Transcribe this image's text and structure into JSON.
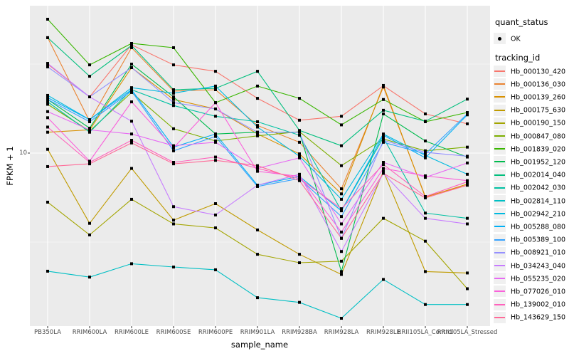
{
  "axes": {
    "x_title": "sample_name",
    "y_title": "FPKM + 1",
    "y_tick_label": "10"
  },
  "legend": {
    "quant_status_title": "quant_status",
    "quant_status_items": [
      {
        "label": "OK",
        "marker": "black-point"
      }
    ],
    "tracking_title": "tracking_id"
  },
  "chart_data": {
    "type": "line",
    "title": "",
    "xlabel": "sample_name",
    "ylabel": "FPKM + 1",
    "x_type": "categorical",
    "yscale": "log10",
    "y_breaks": [
      10
    ],
    "y_minor_breaks": [
      3.162,
      31.62
    ],
    "ylim": [
      1.1,
      68
    ],
    "grid": "on",
    "panel_background": "#EBEBEB",
    "gridline_color": "#FFFFFF",
    "marker": {
      "shape": "square",
      "color": "#000000",
      "size": 4
    },
    "legend_position": "right",
    "categories": [
      "PB350LA",
      "RRIM600LA",
      "RRIM600LE",
      "RRIM600SE",
      "RRIM600PE",
      "RRIM901LA",
      "RRIM928BA",
      "RRIM928LA",
      "RRIM928LE",
      "RRII105LA_Control",
      "RRII105LA_Stressed"
    ],
    "series": [
      {
        "name": "Hb_000130_420",
        "color": "#F8766D",
        "values": [
          31.6,
          20.7,
          40.6,
          31.3,
          28.8,
          20.3,
          15.3,
          16.1,
          23.9,
          16.6,
          14.6
        ]
      },
      {
        "name": "Hb_000136_030",
        "color": "#EA8331",
        "values": [
          44.5,
          15.1,
          39.1,
          22.3,
          22.7,
          14.3,
          11.5,
          6.3,
          23.5,
          5.7,
          6.6
        ]
      },
      {
        "name": "Hb_000139_260",
        "color": "#D89000",
        "values": [
          13.1,
          13.5,
          30.2,
          20.0,
          17.7,
          12.8,
          9.9,
          5.9,
          24.0,
          5.65,
          6.7
        ]
      },
      {
        "name": "Hb_000175_630",
        "color": "#C09B00",
        "values": [
          10.5,
          4.03,
          8.2,
          4.2,
          5.2,
          3.7,
          2.7,
          2.08,
          7.9,
          2.16,
          2.12
        ]
      },
      {
        "name": "Hb_000190_150",
        "color": "#A3A500",
        "values": [
          5.3,
          3.47,
          5.5,
          4.0,
          3.8,
          2.7,
          2.42,
          2.47,
          4.3,
          3.2,
          1.73
        ]
      },
      {
        "name": "Hb_000847_080",
        "color": "#7CAE00",
        "values": [
          18.8,
          13.3,
          21.9,
          13.7,
          11.7,
          12.5,
          13.2,
          8.5,
          12.0,
          10.3,
          10.8
        ]
      },
      {
        "name": "Hb_001839_020",
        "color": "#39B600",
        "values": [
          56.5,
          31.3,
          41.3,
          39.1,
          19.2,
          23.8,
          20.3,
          14.4,
          20.0,
          15.0,
          16.9
        ]
      },
      {
        "name": "Hb_001952_120",
        "color": "#00BB4E",
        "values": [
          20.0,
          13.8,
          31.6,
          20.7,
          12.8,
          13.1,
          13.1,
          2.16,
          16.6,
          11.7,
          9.5
        ]
      },
      {
        "name": "Hb_002014_040",
        "color": "#00BF7D",
        "values": [
          44.5,
          27.0,
          40.2,
          22.7,
          23.1,
          28.8,
          13.4,
          11.0,
          17.4,
          15.1,
          20.1
        ]
      },
      {
        "name": "Hb_002042_030",
        "color": "#00C1A3",
        "values": [
          19.4,
          13.1,
          22.7,
          18.5,
          16.1,
          15.0,
          12.6,
          4.74,
          12.2,
          4.6,
          4.3
        ]
      },
      {
        "name": "Hb_002814_110",
        "color": "#00BFC4",
        "values": [
          2.17,
          2.01,
          2.39,
          2.29,
          2.21,
          1.54,
          1.45,
          1.18,
          1.95,
          1.41,
          1.41
        ]
      },
      {
        "name": "Hb_002942_210",
        "color": "#00BAE0",
        "values": [
          21.1,
          15.4,
          23.3,
          21.7,
          23.8,
          14.0,
          9.6,
          5.5,
          12.8,
          9.7,
          7.6
        ]
      },
      {
        "name": "Hb_005288_080",
        "color": "#00B0F6",
        "values": [
          20.5,
          15.4,
          22.7,
          10.8,
          12.8,
          6.6,
          7.4,
          4.74,
          12.6,
          9.4,
          16.4
        ]
      },
      {
        "name": "Hb_005389_100",
        "color": "#35A2FF",
        "values": [
          20.0,
          15.0,
          22.3,
          10.3,
          12.4,
          6.49,
          7.2,
          4.4,
          11.5,
          9.9,
          16.6
        ]
      },
      {
        "name": "Hb_008921_010",
        "color": "#9590FF",
        "values": [
          30.5,
          20.7,
          30.2,
          19.2,
          17.7,
          13.1,
          13.1,
          3.32,
          11.8,
          10.1,
          9.6
        ]
      },
      {
        "name": "Hb_034243_040",
        "color": "#C77CFF",
        "values": [
          31.9,
          20.7,
          15.1,
          5.0,
          4.49,
          6.6,
          7.6,
          2.8,
          7.7,
          4.3,
          4.0
        ]
      },
      {
        "name": "Hb_055235_020",
        "color": "#E76BF3",
        "values": [
          17.1,
          13.5,
          12.8,
          11.0,
          11.5,
          8.2,
          9.4,
          4.0,
          8.87,
          7.3,
          8.8
        ]
      },
      {
        "name": "Hb_077026_010",
        "color": "#FA62DB",
        "values": [
          15.8,
          9.0,
          19.4,
          10.7,
          19.2,
          7.9,
          7.4,
          3.6,
          8.2,
          7.45,
          7.0
        ]
      },
      {
        "name": "Hb_139002_010",
        "color": "#FF62BC",
        "values": [
          14.0,
          8.87,
          11.8,
          8.87,
          9.5,
          8.2,
          7.2,
          4.87,
          8.63,
          5.7,
          6.9
        ]
      },
      {
        "name": "Hb_143629_150",
        "color": "#FF6A98",
        "values": [
          8.4,
          8.7,
          11.4,
          8.7,
          9.1,
          8.5,
          7.0,
          3.32,
          7.7,
          5.6,
          6.6
        ]
      }
    ]
  }
}
